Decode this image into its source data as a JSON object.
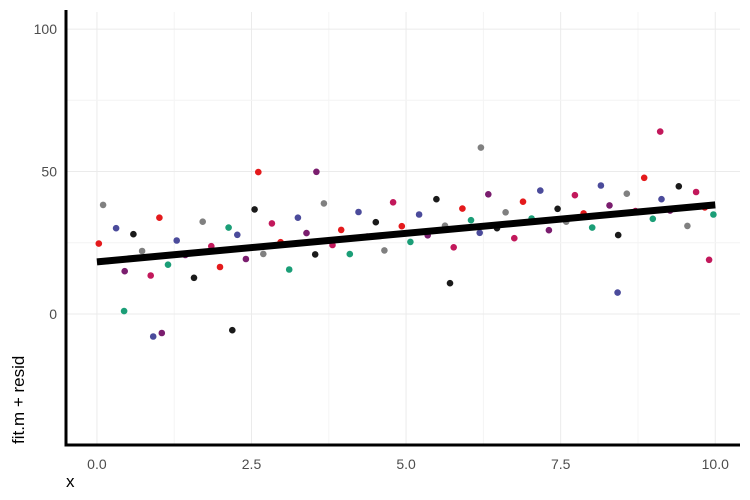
{
  "chart_data": {
    "type": "scatter",
    "title": "",
    "xlabel": "x",
    "ylabel": "fit.m + resid",
    "xlim": [
      -0.5,
      10.4
    ],
    "ylim": [
      -46,
      106
    ],
    "x_ticks": [
      0.0,
      2.5,
      5.0,
      7.5,
      10.0
    ],
    "x_tick_labels": [
      "0.0",
      "2.5",
      "5.0",
      "7.5",
      "10.0"
    ],
    "y_ticks": [
      0,
      50,
      100
    ],
    "y_tick_labels": [
      "0",
      "50",
      "100"
    ],
    "grid": true,
    "legend": "none",
    "point_colors": [
      "#e41a1c",
      "#1b9e77",
      "#4b4b9b",
      "#7a1d6e",
      "#1a1a1a",
      "#808080",
      "#c2185b"
    ],
    "fit_line": {
      "x": [
        0.0,
        10.0
      ],
      "y": [
        18.3,
        38.3
      ],
      "color": "#000000"
    },
    "series": [
      {
        "x": [
          0.03,
          0.17,
          0.31,
          0.45,
          0.59,
          0.73,
          0.87,
          1.01,
          1.15,
          1.29,
          1.43,
          1.57,
          1.71,
          1.85,
          1.99,
          2.13,
          2.27,
          2.41,
          2.55,
          2.69,
          2.83,
          2.97,
          3.11,
          3.25,
          3.39,
          3.53,
          3.67,
          3.81,
          3.95,
          4.09,
          4.23,
          4.37,
          4.51,
          4.65,
          4.79,
          4.93,
          5.07,
          5.21,
          5.35,
          5.49,
          5.63,
          5.77,
          5.91,
          6.05,
          6.19,
          6.33,
          6.47,
          6.61,
          6.75,
          6.89,
          7.03,
          7.17,
          7.31,
          7.45,
          7.59,
          7.73,
          7.87,
          8.01,
          8.15,
          8.29,
          8.43,
          8.57,
          8.71,
          8.85,
          8.99,
          9.13,
          9.27,
          9.41,
          9.55,
          9.69,
          9.83,
          9.97,
          0.91,
          1.05,
          2.19,
          6.21,
          9.11,
          2.61,
          0.44,
          8.42,
          3.55,
          5.71,
          0.1,
          9.9
        ],
        "y": [
          24.7,
          18.6,
          30.1,
          15.0,
          28.0,
          22.1,
          13.5,
          33.8,
          17.3,
          25.8,
          20.7,
          12.7,
          32.4,
          23.8,
          16.5,
          30.3,
          27.8,
          19.3,
          36.7,
          21.1,
          31.8,
          25.2,
          15.6,
          33.8,
          28.4,
          20.9,
          38.8,
          24.2,
          29.5,
          21.0,
          35.8,
          27.2,
          32.2,
          22.3,
          39.2,
          30.8,
          25.3,
          34.9,
          27.6,
          40.3,
          31.0,
          23.4,
          37.0,
          32.9,
          28.5,
          42.0,
          30.1,
          35.7,
          26.6,
          39.4,
          33.5,
          43.3,
          29.4,
          36.9,
          32.4,
          41.7,
          35.3,
          30.3,
          45.1,
          38.1,
          27.7,
          42.2,
          36.1,
          47.8,
          33.4,
          40.3,
          36.3,
          44.8,
          30.9,
          42.8,
          37.4,
          34.9,
          -7.9,
          -6.7,
          -5.7,
          58.4,
          64.0,
          49.8,
          1.0,
          7.5,
          49.9,
          10.8,
          38.3,
          19.0
        ]
      }
    ]
  }
}
